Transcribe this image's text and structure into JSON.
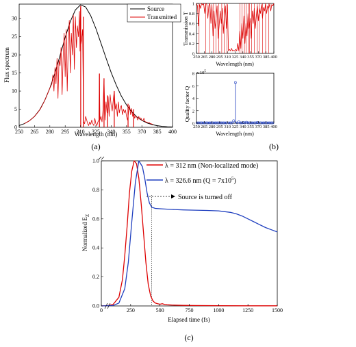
{
  "chart_data": [
    {
      "id": "a",
      "type": "line",
      "caption": "(a)",
      "xlabel": "Wavelength (nm)",
      "ylabel": "Flux spectrum",
      "xlim": [
        250,
        400
      ],
      "ylim": [
        0,
        34
      ],
      "xticks": [
        250,
        265,
        280,
        295,
        310,
        325,
        340,
        355,
        370,
        385,
        400
      ],
      "yticks": [
        0,
        5,
        10,
        15,
        20,
        25,
        30
      ],
      "legend_position": "top-right",
      "series": [
        {
          "name": "Source",
          "color": "#000000",
          "x": [
            250,
            255,
            260,
            265,
            270,
            275,
            280,
            285,
            290,
            295,
            300,
            305,
            310,
            315,
            320,
            325,
            330,
            335,
            340,
            345,
            350,
            355,
            360,
            365,
            370,
            375,
            380,
            385,
            390,
            395,
            400
          ],
          "y": [
            0.5,
            1.0,
            1.8,
            3.0,
            4.8,
            7.4,
            10.8,
            15.0,
            19.8,
            24.8,
            29.2,
            32.4,
            33.8,
            33.2,
            30.8,
            27.3,
            23.2,
            19.1,
            15.1,
            11.6,
            8.6,
            6.2,
            4.3,
            2.9,
            1.9,
            1.2,
            0.75,
            0.45,
            0.27,
            0.16,
            0.1
          ]
        },
        {
          "name": "Transmitted",
          "color": "#dd0000",
          "x": [
            255,
            260,
            265,
            268,
            271,
            274,
            277,
            280,
            282,
            283,
            284,
            285,
            286,
            287,
            288,
            289,
            290,
            291,
            292,
            293,
            294,
            295,
            296,
            297,
            298,
            299,
            300,
            301,
            302,
            303,
            304,
            305,
            306,
            307,
            308,
            309,
            309.5,
            310,
            310.5,
            311,
            312,
            313,
            314,
            315,
            316,
            317,
            318,
            319,
            320,
            321,
            322,
            323,
            324,
            325,
            326,
            327,
            328,
            328.5,
            329,
            330,
            331,
            332,
            333,
            334,
            335,
            336,
            337,
            338,
            339,
            340,
            341,
            342,
            343,
            344,
            345,
            346,
            347,
            348,
            349,
            350,
            351,
            352,
            353,
            354,
            355,
            356,
            357,
            358,
            359,
            360,
            361,
            362,
            363,
            364,
            365,
            366,
            367,
            368,
            369,
            370,
            371,
            372,
            373,
            374,
            375,
            376,
            377,
            378,
            379,
            380,
            381
          ],
          "y": [
            1.0,
            1.8,
            3.0,
            4.0,
            5.2,
            6.8,
            8.7,
            10.8,
            12.0,
            14.5,
            10.0,
            16.5,
            12.0,
            19.0,
            8.0,
            18.5,
            17.0,
            22.0,
            9.0,
            19.0,
            26.0,
            14.0,
            27.0,
            10.0,
            23.0,
            29.5,
            15.0,
            26.0,
            20.0,
            31.0,
            16.0,
            30.5,
            22.0,
            28.0,
            25.0,
            32.0,
            21.0,
            33.0,
            23.0,
            24.0,
            27.0,
            1.5,
            1.0,
            3.0,
            2.0,
            1.0,
            0.5,
            1.5,
            0.8,
            2.0,
            1.0,
            0.5,
            2.5,
            1.0,
            0.5,
            1.5,
            2.0,
            14.8,
            2.0,
            3.0,
            1.5,
            5.0,
            13.5,
            2.0,
            7.0,
            4.0,
            8.5,
            3.0,
            9.0,
            6.0,
            4.5,
            7.5,
            10.0,
            5.0,
            6.5,
            3.0,
            7.0,
            4.0,
            5.5,
            6.0,
            3.5,
            5.0,
            4.0,
            4.8,
            3.0,
            2.0,
            4.2,
            6.0,
            3.5,
            5.2,
            3.0,
            4.0,
            2.5,
            3.2,
            2.8,
            2.0,
            3.0,
            2.2,
            2.6,
            2.0,
            1.8,
            2.5,
            1.6,
            1.5,
            1.4,
            1.2,
            1.3,
            1.1,
            1.0,
            0.9,
            0.8
          ]
        }
      ],
      "spikes": [
        {
          "x": 310.2,
          "y": 33.5
        },
        {
          "x": 312.8,
          "y": 30.5
        },
        {
          "x": 328.5,
          "y": 14.8
        },
        {
          "x": 333.0,
          "y": 13.5
        },
        {
          "x": 336.5,
          "y": 8.8
        },
        {
          "x": 343.0,
          "y": 10.0
        },
        {
          "x": 356.5,
          "y": 6.5
        },
        {
          "x": 362.0,
          "y": 5.0
        }
      ]
    },
    {
      "id": "b-top",
      "type": "line",
      "xlabel": "Wavelength (nm)",
      "ylabel": "Transmission T",
      "xlim": [
        250,
        400
      ],
      "ylim": [
        0,
        1
      ],
      "xticks": [
        250,
        265,
        280,
        295,
        310,
        325,
        340,
        355,
        370,
        385,
        400
      ],
      "yticks": [
        0,
        0.2,
        0.4,
        0.6,
        0.8,
        1
      ],
      "ytick_labels": [
        "0",
        "0.2",
        "0.4",
        "0.6",
        "0.8",
        "1"
      ],
      "series": [
        {
          "name": "",
          "color": "#dd0000",
          "x": [
            250,
            252,
            254,
            256,
            258,
            260,
            262,
            264,
            266,
            268,
            270,
            272,
            274,
            276,
            278,
            280,
            282,
            284,
            286,
            288,
            290,
            292,
            294,
            296,
            298,
            300,
            302,
            304,
            306,
            308,
            310,
            312,
            314,
            316,
            318,
            320,
            322,
            324,
            326,
            328,
            330,
            332,
            334,
            336,
            338,
            340,
            342,
            344,
            346,
            348,
            350,
            352,
            354,
            356,
            358,
            360,
            362,
            364,
            366,
            368,
            370,
            372,
            374,
            376,
            378,
            380,
            382,
            384,
            386,
            388,
            390,
            392,
            394,
            396,
            398,
            400
          ],
          "y": [
            1.0,
            0.95,
            0.55,
            0.98,
            0.9,
            1.0,
            0.97,
            0.99,
            0.8,
            1.0,
            0.98,
            0.7,
            0.96,
            1.0,
            0.6,
            0.98,
            0.35,
            0.85,
            0.5,
            0.7,
            0.95,
            0.3,
            0.55,
            0.85,
            0.6,
            0.9,
            0.4,
            0.75,
            0.95,
            0.5,
            0.98,
            0.05,
            0.08,
            0.05,
            0.1,
            0.05,
            0.06,
            0.05,
            0.08,
            0.05,
            0.2,
            0.05,
            0.45,
            0.1,
            0.6,
            0.3,
            0.75,
            0.2,
            0.6,
            0.35,
            0.8,
            0.5,
            0.7,
            0.3,
            0.85,
            0.6,
            0.9,
            0.5,
            0.75,
            0.95,
            0.65,
            0.9,
            0.8,
            0.98,
            0.7,
            0.92,
            0.85,
            1.0,
            0.8,
            0.95,
            0.9,
            0.99,
            0.85,
            0.98,
            0.95,
            1.0
          ]
        }
      ],
      "dropouts": [
        255,
        268,
        276,
        283,
        288,
        293,
        299,
        304,
        309,
        334,
        338,
        343,
        346,
        350,
        353,
        357,
        362,
        368,
        372,
        378,
        384,
        390
      ]
    },
    {
      "id": "b-bottom",
      "type": "scatter",
      "caption": "(b)",
      "xlabel": "Wavelength (nm)",
      "ylabel": "Quality factor Q",
      "y_multiplier_label": "x 10",
      "y_multiplier_exponent": "5",
      "xlim": [
        250,
        400
      ],
      "ylim": [
        0,
        8
      ],
      "xticks": [
        250,
        265,
        280,
        295,
        310,
        325,
        340,
        355,
        370,
        385,
        400
      ],
      "yticks": [
        0,
        2,
        4,
        6,
        8
      ],
      "color": "#1f3fbf",
      "x": [
        251,
        254,
        257,
        260,
        263,
        266,
        269,
        272,
        275,
        278,
        281,
        284,
        287,
        290,
        293,
        296,
        299,
        302,
        305,
        308,
        313,
        316,
        319,
        322,
        325.5,
        329,
        332,
        335,
        338,
        341,
        344,
        347,
        350,
        353,
        356,
        359,
        362,
        365,
        368,
        371,
        374,
        377,
        380,
        383,
        386,
        389,
        392,
        395,
        398
      ],
      "y": [
        0.05,
        0.05,
        0.05,
        0.05,
        0.05,
        0.05,
        0.05,
        0.05,
        0.05,
        0.05,
        0.05,
        0.05,
        0.05,
        0.05,
        0.05,
        0.05,
        0.05,
        0.05,
        0.05,
        0.05,
        0.05,
        0.05,
        0.05,
        0.4,
        6.5,
        0.05,
        0.2,
        0.05,
        0.05,
        0.1,
        0.05,
        0.15,
        0.05,
        0.05,
        0.05,
        0.05,
        0.05,
        0.05,
        0.1,
        0.05,
        0.05,
        0.05,
        0.05,
        0.05,
        0.05,
        0.05,
        0.05,
        0.05,
        0.05
      ]
    },
    {
      "id": "c",
      "type": "line",
      "caption": "(c)",
      "xlabel": "Elapsed time (fs)",
      "ylabel": "Normalized E",
      "ylabel_sub": "Z",
      "xlim": [
        0,
        1500
      ],
      "ylim": [
        0,
        1
      ],
      "xticks": [
        0,
        250,
        500,
        750,
        1000,
        1250,
        1500
      ],
      "yticks": [
        0,
        0.2,
        0.4,
        0.6,
        0.8,
        1
      ],
      "ytick_labels": [
        "0.0",
        "0.2",
        "0.4",
        "0.6",
        "0.8",
        "1.0"
      ],
      "legend_position": "top-right",
      "annotation": "Source is turned off",
      "source_off_x": 430,
      "series": [
        {
          "name": "λ = 312 nm (Non-localized mode)",
          "color": "#dd0000",
          "x": [
            0,
            50,
            100,
            150,
            180,
            200,
            220,
            240,
            260,
            280,
            300,
            320,
            340,
            360,
            380,
            400,
            420,
            440,
            460,
            480,
            500,
            520,
            540,
            560,
            600,
            700,
            800,
            1000,
            1250,
            1500
          ],
          "y": [
            0,
            0.002,
            0.01,
            0.06,
            0.18,
            0.35,
            0.55,
            0.78,
            0.93,
            1.0,
            0.98,
            0.88,
            0.7,
            0.5,
            0.3,
            0.15,
            0.07,
            0.035,
            0.02,
            0.015,
            0.012,
            0.015,
            0.01,
            0.008,
            0.006,
            0.004,
            0.003,
            0.002,
            0.001,
            0.001
          ]
        },
        {
          "name": "λ = 326.6 nm (Q = 7x10",
          "name_sup": "5",
          "name_tail": ")",
          "color": "#1f3fbf",
          "x": [
            0,
            100,
            150,
            200,
            230,
            260,
            290,
            320,
            350,
            370,
            390,
            410,
            430,
            460,
            500,
            600,
            700,
            800,
            900,
            1000,
            1050,
            1100,
            1150,
            1200,
            1250,
            1300,
            1350,
            1400,
            1450,
            1500
          ],
          "y": [
            0,
            0.003,
            0.02,
            0.12,
            0.3,
            0.58,
            0.85,
            1.0,
            0.96,
            0.88,
            0.78,
            0.71,
            0.68,
            0.672,
            0.67,
            0.665,
            0.662,
            0.66,
            0.658,
            0.655,
            0.65,
            0.645,
            0.635,
            0.62,
            0.6,
            0.58,
            0.56,
            0.54,
            0.525,
            0.51
          ]
        }
      ]
    }
  ]
}
